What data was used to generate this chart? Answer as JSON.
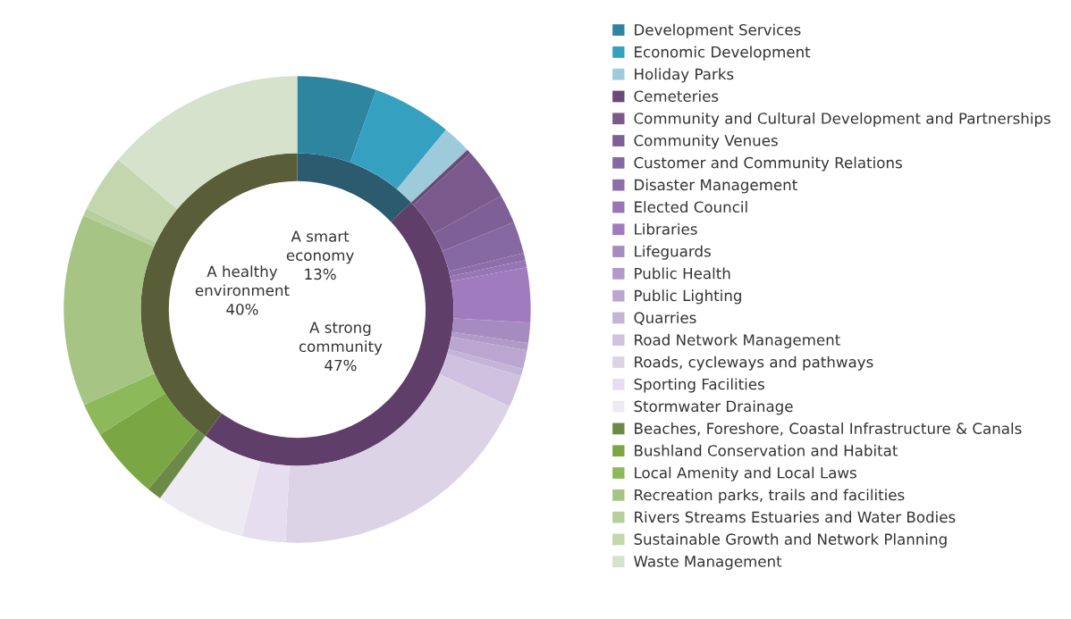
{
  "chart_data": {
    "type": "donut",
    "legend": "right",
    "categories": [
      "A smart economy",
      "A strong community",
      "A healthy environment",
      "Development Services",
      "Economic Development",
      "Holiday Parks",
      "Cemeteries",
      "Community and Cultural Development and Partnerships",
      "Community Venues",
      "Customer and Community Relations",
      "Disaster Management",
      "Elected Council",
      "Libraries",
      "Lifeguards",
      "Public Health",
      "Public Lighting",
      "Quarries",
      "Road Network Management",
      "Roads, cycleways and pathways",
      "Sporting Facilities",
      "Stormwater Drainage",
      "Beaches, Foreshore, Coastal Infrastructure & Canals",
      "Bushland Conservation and Habitat",
      "Local Amenity and Local Laws",
      "Recreation parks, trails and facilities",
      "Rivers Streams Estuaries and Water Bodies",
      "Sustainable Growth and Network Planning",
      "Waste Management"
    ],
    "colors": [
      "#2c5a6e",
      "#5f3f6a",
      "#5a5e38",
      "#2e85a0",
      "#36a0c0",
      "#9ecbdb",
      "#6a4a78",
      "#7a5a8c",
      "#7e5f96",
      "#8668a2",
      "#8e6eaa",
      "#9676b4",
      "#a07cbf",
      "#a58bbf",
      "#b09ac8",
      "#bba6d2",
      "#c4b4d8",
      "#cfc1df",
      "#ddd3e6",
      "#e6def0",
      "#edeaf2",
      "#6b8a47",
      "#7aa644",
      "#8cb95a",
      "#a6c483",
      "#b6cf9c",
      "#c3d6ad",
      "#d6e2cc"
    ],
    "series": [
      {
        "values": [
          13,
          47,
          40,
          null,
          null,
          null,
          null,
          null,
          null,
          null,
          null,
          null,
          null,
          null,
          null,
          null,
          null,
          null,
          null,
          null,
          null,
          null,
          null,
          null,
          null,
          null,
          null,
          null
        ],
        "value_labels": [
          "13%",
          "47%",
          "40%",
          null,
          null,
          null,
          null,
          null,
          null,
          null,
          null,
          null,
          null,
          null,
          null,
          null,
          null,
          null,
          null,
          null,
          null,
          null,
          null,
          null,
          null,
          null,
          null,
          null
        ]
      },
      {
        "values": [
          null,
          null,
          null,
          5.5,
          5.5,
          2,
          0.3,
          3.6,
          2,
          2.2,
          0.5,
          0.5,
          3.8,
          1.4,
          0.5,
          1.3,
          0.5,
          2.2,
          19.0,
          3,
          6.2,
          1,
          5,
          2.3,
          13.3,
          0.5,
          4,
          13.9
        ]
      }
    ]
  }
}
